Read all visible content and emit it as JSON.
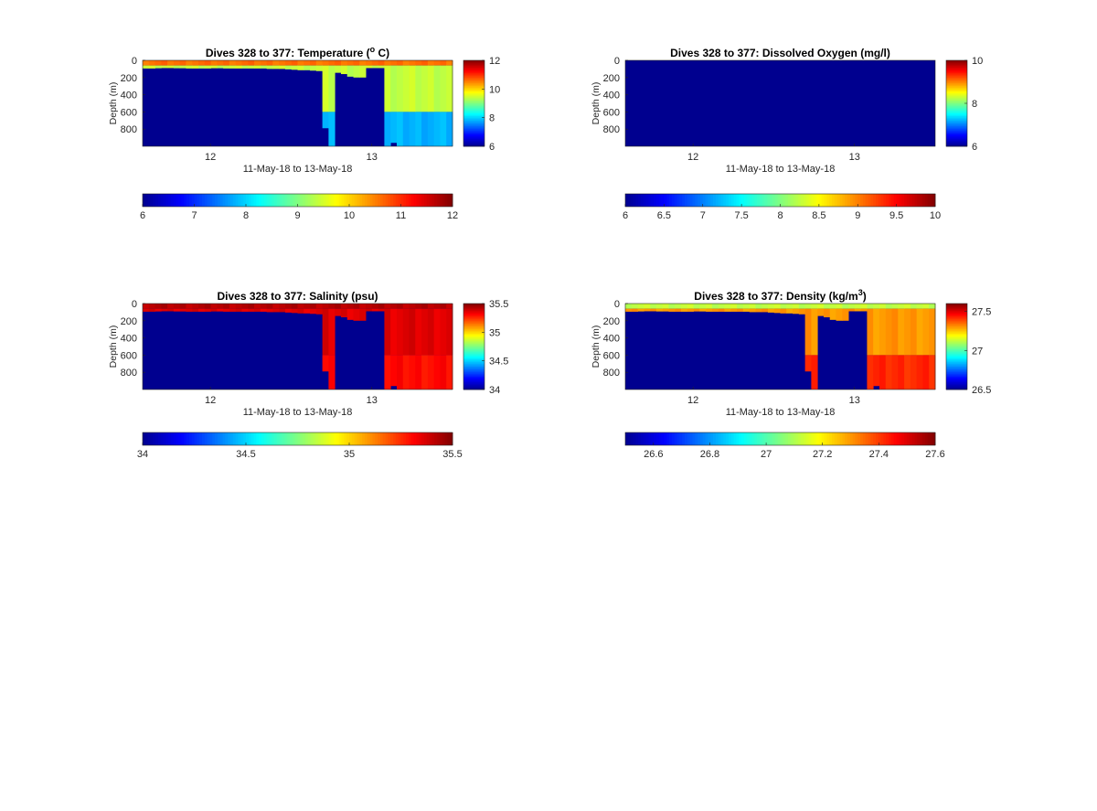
{
  "colormap": [
    "#00008f",
    "#0000ff",
    "#0080ff",
    "#00ffff",
    "#80ff80",
    "#ffff00",
    "#ff8000",
    "#ff0000",
    "#800000"
  ],
  "chart_data": [
    {
      "type": "heatmap",
      "variable": "temperature",
      "title_main": "Dives 328 to 377: Temperature (",
      "title_sup": "o",
      "title_end": " C)",
      "xlabel": "11-May-18 to 13-May-18",
      "ylabel": "Depth (m)",
      "x_ticks": [
        "12",
        "13"
      ],
      "y_ticks": [
        "0",
        "200",
        "400",
        "600",
        "800"
      ],
      "ylim": [
        0,
        1000
      ],
      "clim": [
        6,
        12
      ],
      "side_colorbar_ticks": [
        "6",
        "8",
        "10",
        "12"
      ],
      "bottom_colorbar_ticks": [
        "6",
        "7",
        "8",
        "9",
        "10",
        "11",
        "12"
      ],
      "dives": 50,
      "surface_value": 10.6,
      "deep_value": 9.4,
      "bottom_value": 7.8,
      "fill_value": 6
    },
    {
      "type": "heatmap",
      "variable": "dissolved_oxygen",
      "title_main": "Dives 328 to 377: Dissolved Oxygen (mg/l)",
      "title_sup": "",
      "title_end": "",
      "xlabel": "11-May-18 to 13-May-18",
      "ylabel": "Depth (m)",
      "x_ticks": [
        "12",
        "13"
      ],
      "y_ticks": [
        "0",
        "200",
        "400",
        "600",
        "800"
      ],
      "ylim": [
        0,
        1000
      ],
      "clim": [
        6,
        10
      ],
      "side_colorbar_ticks": [
        "6",
        "8",
        "10"
      ],
      "bottom_colorbar_ticks": [
        "6",
        "6.5",
        "7",
        "7.5",
        "8",
        "8.5",
        "9",
        "9.5",
        "10"
      ],
      "dives": 50,
      "all_fill": true,
      "fill_value": 6
    },
    {
      "type": "heatmap",
      "variable": "salinity",
      "title_main": "Dives 328 to 377: Salinity (psu)",
      "title_sup": "",
      "title_end": "",
      "xlabel": "11-May-18 to 13-May-18",
      "ylabel": "Depth (m)",
      "x_ticks": [
        "12",
        "13"
      ],
      "y_ticks": [
        "0",
        "200",
        "400",
        "600",
        "800"
      ],
      "ylim": [
        0,
        1000
      ],
      "clim": [
        34,
        35.5
      ],
      "side_colorbar_ticks": [
        "34",
        "34.5",
        "35",
        "35.5"
      ],
      "bottom_colorbar_ticks": [
        "34",
        "34.5",
        "35",
        "35.5"
      ],
      "dives": 50,
      "surface_value": 35.42,
      "deep_value": 35.36,
      "bottom_value": 35.3,
      "fill_value": 34
    },
    {
      "type": "heatmap",
      "variable": "density",
      "title_main": "Dives 328 to 377: Density (kg/m",
      "title_sup": "3",
      "title_end": ")",
      "xlabel": "11-May-18 to 13-May-18",
      "ylabel": "Depth (m)",
      "x_ticks": [
        "12",
        "13"
      ],
      "y_ticks": [
        "0",
        "200",
        "400",
        "600",
        "800"
      ],
      "ylim": [
        0,
        1000
      ],
      "clim": [
        26.5,
        27.6
      ],
      "side_colorbar_ticks": [
        "26.5",
        "27",
        "27.5"
      ],
      "bottom_colorbar_ticks": [
        "26.6",
        "26.8",
        "27",
        "27.2",
        "27.4",
        "27.6"
      ],
      "bottom_colorbar_clim": [
        26.5,
        27.6
      ],
      "dives": 50,
      "surface_value": 27.12,
      "deep_value": 27.3,
      "bottom_value": 27.42,
      "fill_value": 26.5
    }
  ],
  "profile_bottom_depth_m": [
    95,
    95,
    92,
    90,
    90,
    92,
    92,
    95,
    95,
    95,
    95,
    92,
    92,
    95,
    95,
    95,
    95,
    95,
    95,
    95,
    100,
    100,
    100,
    105,
    110,
    115,
    115,
    120,
    125,
    130,
    140,
    145,
    160,
    190,
    200,
    200,
    210,
    230,
    1000,
    1000,
    960,
    1000,
    1000,
    1000,
    1000,
    1000,
    1000,
    1000,
    1000,
    1000
  ],
  "gap_dives": [
    36,
    37,
    38
  ],
  "deep_dive_bottoms": {
    "29": 790,
    "30": 1000
  }
}
